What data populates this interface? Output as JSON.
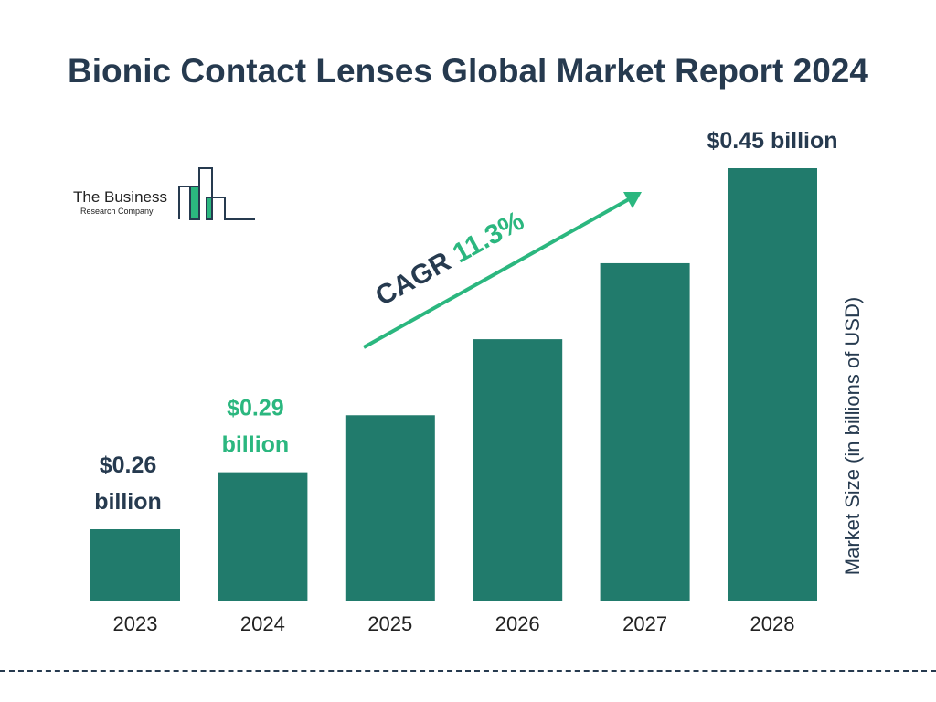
{
  "title": "Bionic Contact Lenses Global Market Report 2024",
  "logo": {
    "line1": "The Business",
    "line2": "Research Company"
  },
  "chart_data": {
    "type": "bar",
    "title": "Bionic Contact Lenses Global Market Report 2024",
    "categories": [
      "2023",
      "2024",
      "2025",
      "2026",
      "2027",
      "2028"
    ],
    "values": [
      0.26,
      0.29,
      0.32,
      0.36,
      0.4,
      0.45
    ],
    "data_labels": [
      {
        "category": "2023",
        "lines": [
          "$0.26",
          "billion"
        ],
        "color": "#263a4f"
      },
      {
        "category": "2024",
        "lines": [
          "$0.29",
          "billion"
        ],
        "color": "#2bb77f"
      },
      {
        "category": "2028",
        "lines": [
          "$0.45 billion"
        ],
        "color": "#263a4f"
      }
    ],
    "ylabel": "Market Size (in billions of USD)",
    "xlabel": "",
    "annotation": {
      "prefix": "CAGR",
      "value": "11.3%"
    },
    "grid": false,
    "colors": {
      "bar": "#217b6c",
      "text": "#263a4f",
      "accent": "#2bb77f"
    }
  }
}
